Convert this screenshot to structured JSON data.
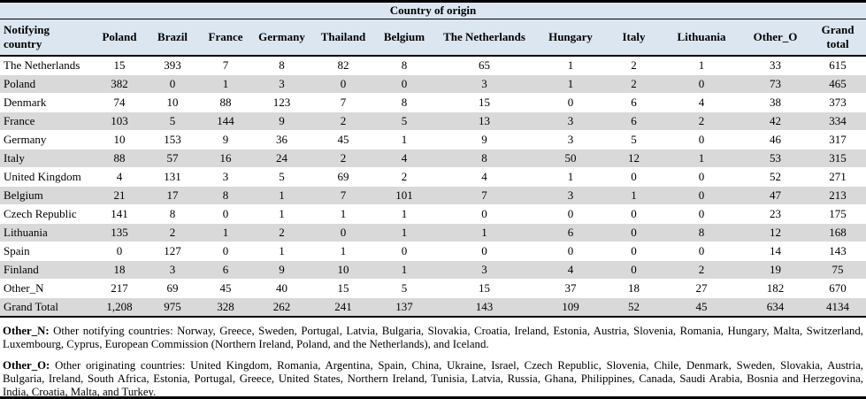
{
  "table": {
    "title": "Country of origin",
    "corner_header": "Notifying country",
    "columns": [
      "Poland",
      "Brazil",
      "France",
      "Germany",
      "Thailand",
      "Belgium",
      "The Netherlands",
      "Hungary",
      "Italy",
      "Lithuania",
      "Other_O",
      "Grand total"
    ],
    "rows": [
      {
        "label": "The Netherlands",
        "values": [
          "15",
          "393",
          "7",
          "8",
          "82",
          "8",
          "65",
          "1",
          "2",
          "1",
          "33",
          "615"
        ]
      },
      {
        "label": "Poland",
        "values": [
          "382",
          "0",
          "1",
          "3",
          "0",
          "0",
          "3",
          "1",
          "2",
          "0",
          "73",
          "465"
        ]
      },
      {
        "label": "Denmark",
        "values": [
          "74",
          "10",
          "88",
          "123",
          "7",
          "8",
          "15",
          "0",
          "6",
          "4",
          "38",
          "373"
        ]
      },
      {
        "label": "France",
        "values": [
          "103",
          "5",
          "144",
          "9",
          "2",
          "5",
          "13",
          "3",
          "6",
          "2",
          "42",
          "334"
        ]
      },
      {
        "label": "Germany",
        "values": [
          "10",
          "153",
          "9",
          "36",
          "45",
          "1",
          "9",
          "3",
          "5",
          "0",
          "46",
          "317"
        ]
      },
      {
        "label": "Italy",
        "values": [
          "88",
          "57",
          "16",
          "24",
          "2",
          "4",
          "8",
          "50",
          "12",
          "1",
          "53",
          "315"
        ]
      },
      {
        "label": "United Kingdom",
        "values": [
          "4",
          "131",
          "3",
          "5",
          "69",
          "2",
          "4",
          "1",
          "0",
          "0",
          "52",
          "271"
        ]
      },
      {
        "label": "Belgium",
        "values": [
          "21",
          "17",
          "8",
          "1",
          "7",
          "101",
          "7",
          "3",
          "1",
          "0",
          "47",
          "213"
        ]
      },
      {
        "label": "Czech Republic",
        "values": [
          "141",
          "8",
          "0",
          "1",
          "1",
          "1",
          "0",
          "0",
          "0",
          "0",
          "23",
          "175"
        ]
      },
      {
        "label": "Lithuania",
        "values": [
          "135",
          "2",
          "1",
          "2",
          "0",
          "1",
          "1",
          "6",
          "0",
          "8",
          "12",
          "168"
        ]
      },
      {
        "label": "Spain",
        "values": [
          "0",
          "127",
          "0",
          "1",
          "1",
          "0",
          "0",
          "0",
          "0",
          "0",
          "14",
          "143"
        ]
      },
      {
        "label": "Finland",
        "values": [
          "18",
          "3",
          "6",
          "9",
          "10",
          "1",
          "3",
          "4",
          "0",
          "2",
          "19",
          "75"
        ]
      },
      {
        "label": "Other_N",
        "values": [
          "217",
          "69",
          "45",
          "40",
          "15",
          "5",
          "15",
          "37",
          "18",
          "27",
          "182",
          "670"
        ]
      },
      {
        "label": "Grand Total",
        "values": [
          "1,208",
          "975",
          "328",
          "262",
          "241",
          "137",
          "143",
          "109",
          "52",
          "45",
          "634",
          "4134"
        ]
      }
    ]
  },
  "footnotes": [
    {
      "label": "Other_N:",
      "text": "Other notifying countries: Norway, Greece, Sweden, Portugal, Latvia, Bulgaria, Slovakia, Croatia, Ireland, Estonia, Austria, Slovenia, Romania, Hungary, Malta, Switzerland, Luxembourg, Cyprus, European Commission (Northern Ireland, Poland, and the Netherlands), and Iceland."
    },
    {
      "label": "Other_O:",
      "text": "Other originating countries: United Kingdom, Romania, Argentina, Spain, China, Ukraine, Israel, Czech Republic, Slovenia, Chile, Denmark, Sweden, Slovakia, Austria, Bulgaria, Ireland, South Africa, Estonia, Portugal, Greece, United States, Northern Ireland, Tunisia, Latvia, Russia, Ghana, Philippines, Canada, Saudi Arabia, Bosnia and Herzegovina, India, Croatia, Malta, and Turkey."
    }
  ],
  "colors": {
    "header_bg": "#dce6f1",
    "stripe_bg": "#d9d9d9",
    "rule": "#000000",
    "text": "#000000"
  }
}
